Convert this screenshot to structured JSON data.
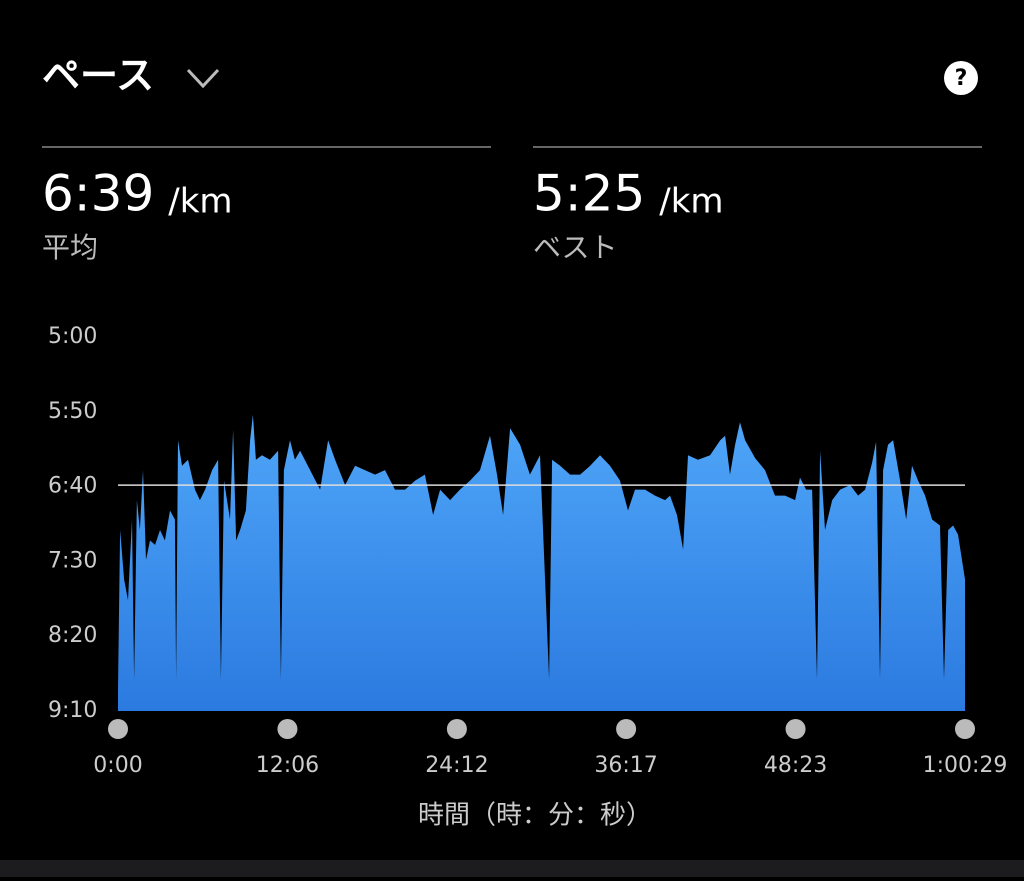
{
  "header": {
    "title": "ペース"
  },
  "stats": [
    {
      "value": "6:39",
      "unit": "/km",
      "label": "平均"
    },
    {
      "value": "5:25",
      "unit": "/km",
      "label": "ベスト"
    }
  ],
  "chart_data": {
    "type": "area",
    "x_label": "時間（時：分：秒）",
    "color": "#3d95f2",
    "x": [
      0,
      9,
      26,
      43,
      60,
      69,
      81,
      94,
      107,
      120,
      137,
      159,
      180,
      201,
      223,
      244,
      249,
      257,
      274,
      300,
      330,
      351,
      373,
      403,
      429,
      441,
      454,
      480,
      493,
      506,
      523,
      548,
      566,
      578,
      591,
      617,
      651,
      686,
      698,
      711,
      737,
      758,
      780,
      823,
      866,
      900,
      930,
      973,
      1016,
      1058,
      1101,
      1144,
      1187,
      1230,
      1273,
      1315,
      1350,
      1380,
      1423,
      1465,
      1508,
      1551,
      1594,
      1624,
      1650,
      1680,
      1723,
      1765,
      1808,
      1847,
      1860,
      1894,
      1937,
      1980,
      2023,
      2065,
      2108,
      2151,
      2185,
      2215,
      2258,
      2301,
      2344,
      2365,
      2395,
      2421,
      2442,
      2485,
      2537,
      2580,
      2601,
      2622,
      2644,
      2665,
      2687,
      2730,
      2772,
      2815,
      2858,
      2901,
      2922,
      2948,
      2974,
      2995,
      3008,
      3029,
      3060,
      3094,
      3137,
      3171,
      3201,
      3231,
      3248,
      3265,
      3278,
      3299,
      3321,
      3351,
      3377,
      3402,
      3428,
      3458,
      3488,
      3522,
      3539,
      3557,
      3578,
      3599,
      3629
    ],
    "y": [
      536,
      429,
      462,
      476,
      422,
      529,
      409,
      429,
      389,
      449,
      436,
      439,
      429,
      436,
      416,
      422,
      529,
      369,
      386,
      382,
      402,
      409,
      402,
      389,
      382,
      529,
      396,
      422,
      362,
      436,
      429,
      416,
      369,
      352,
      382,
      379,
      382,
      376,
      529,
      389,
      369,
      382,
      376,
      389,
      402,
      369,
      382,
      399,
      386,
      389,
      392,
      389,
      402,
      402,
      396,
      392,
      419,
      402,
      409,
      402,
      396,
      389,
      366,
      392,
      419,
      361,
      372,
      392,
      379,
      529,
      382,
      386,
      392,
      392,
      386,
      379,
      386,
      396,
      416,
      402,
      402,
      406,
      409,
      406,
      419,
      442,
      379,
      382,
      379,
      369,
      366,
      392,
      372,
      357,
      369,
      381,
      389,
      406,
      406,
      409,
      394,
      402,
      402,
      529,
      376,
      429,
      409,
      402,
      399,
      406,
      402,
      384,
      370,
      529,
      389,
      372,
      369,
      396,
      422,
      386,
      396,
      406,
      422,
      426,
      529,
      429,
      426,
      432,
      462
    ],
    "xlim": [
      0,
      3629
    ],
    "xticks": [
      {
        "value": 0,
        "label": "0:00"
      },
      {
        "value": 726,
        "label": "12:06"
      },
      {
        "value": 1452,
        "label": "24:12"
      },
      {
        "value": 2177,
        "label": "36:17"
      },
      {
        "value": 2903,
        "label": "48:23"
      },
      {
        "value": 3629,
        "label": "1:00:29"
      }
    ],
    "ylim": [
      550,
      300
    ],
    "yticks": [
      {
        "value": 300,
        "label": "5:00"
      },
      {
        "value": 350,
        "label": "5:50"
      },
      {
        "value": 400,
        "label": "6:40"
      },
      {
        "value": 450,
        "label": "7:30"
      },
      {
        "value": 500,
        "label": "8:20"
      },
      {
        "value": 550,
        "label": "9:10"
      }
    ],
    "reference_line": 399
  }
}
